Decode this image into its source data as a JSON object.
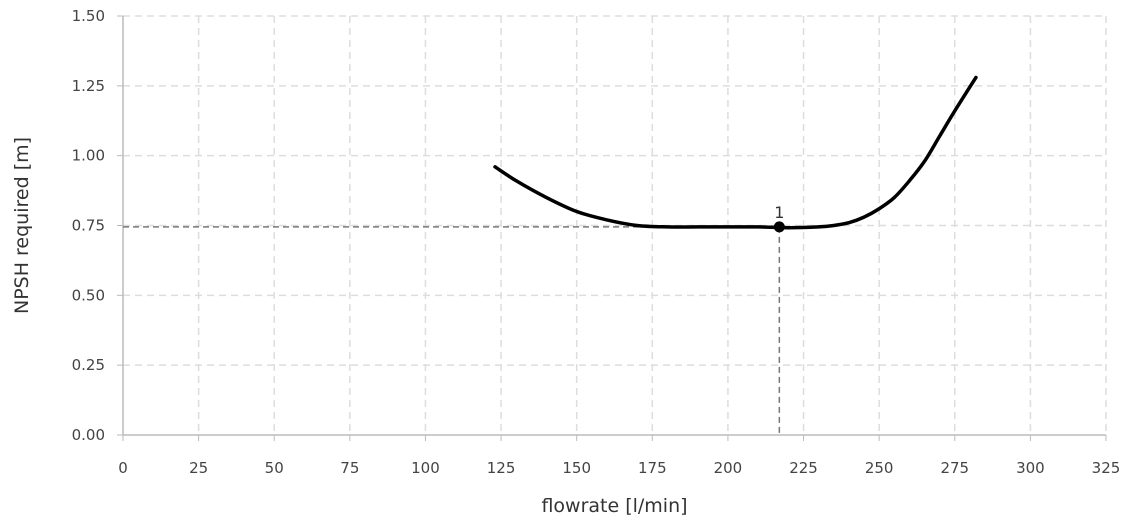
{
  "chart_data": {
    "type": "line",
    "xlabel": "flowrate [l/min]",
    "ylabel": "NPSH required [m]",
    "xlim": [
      0,
      325
    ],
    "ylim": [
      0,
      1.5
    ],
    "x_ticks": [
      "0",
      "25",
      "50",
      "75",
      "100",
      "125",
      "150",
      "175",
      "200",
      "225",
      "250",
      "275",
      "300",
      "325"
    ],
    "y_ticks": [
      "0.00",
      "0.25",
      "0.50",
      "0.75",
      "1.00",
      "1.25",
      "1.50"
    ],
    "grid": true,
    "series": [
      {
        "x": [
          123,
          130,
          140,
          150,
          160,
          170,
          180,
          190,
          200,
          210,
          220,
          230,
          235,
          240,
          245,
          250,
          255,
          260,
          265,
          270,
          275,
          282
        ],
        "y": [
          0.96,
          0.91,
          0.85,
          0.8,
          0.77,
          0.75,
          0.745,
          0.745,
          0.745,
          0.745,
          0.742,
          0.745,
          0.75,
          0.76,
          0.78,
          0.81,
          0.85,
          0.91,
          0.98,
          1.07,
          1.16,
          1.28
        ]
      }
    ],
    "annotations": [
      {
        "label": "1",
        "x": 217,
        "y": 0.745
      }
    ],
    "colors": {
      "line": "#000000",
      "grid": "#dddddd",
      "axis": "#bbbbbb",
      "guide": "#777777"
    }
  }
}
